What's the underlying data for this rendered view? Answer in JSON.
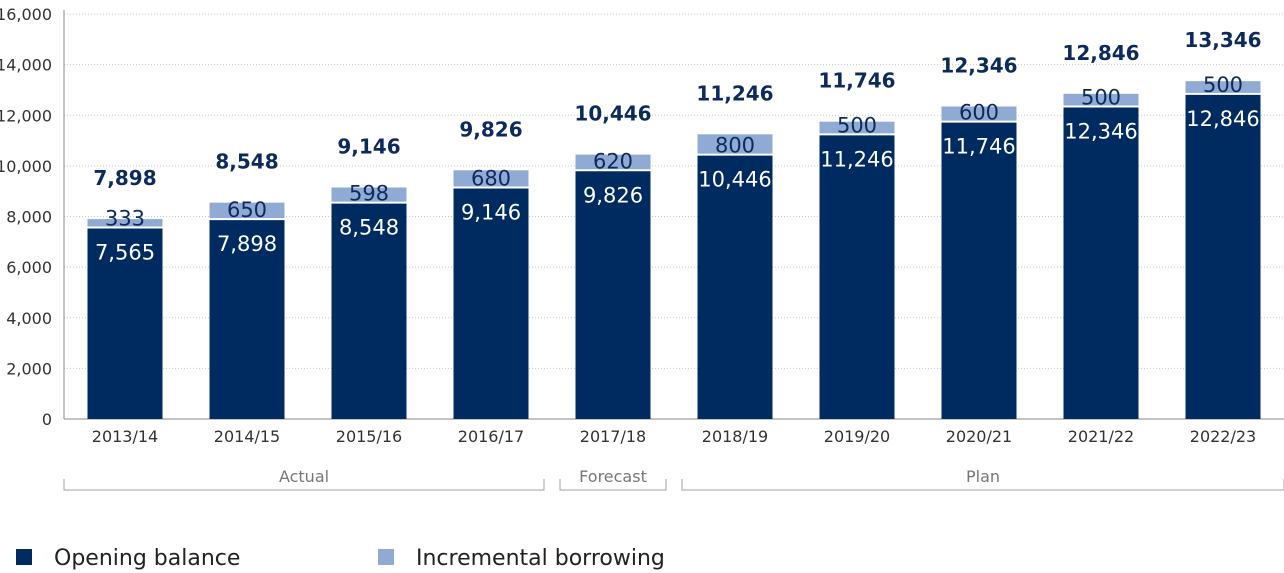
{
  "chart_data": {
    "type": "bar",
    "stacked": true,
    "categories": [
      "2013/14",
      "2014/15",
      "2015/16",
      "2016/17",
      "2017/18",
      "2018/19",
      "2019/20",
      "2020/21",
      "2021/22",
      "2022/23"
    ],
    "series": [
      {
        "name": "Opening balance",
        "color": "#002b60",
        "values": [
          7565,
          7898,
          8548,
          9146,
          9826,
          10446,
          11246,
          11746,
          12346,
          12846
        ],
        "labels": [
          "7,565",
          "7,898",
          "8,548",
          "9,146",
          "9,826",
          "10,446",
          "11,246",
          "11,746",
          "12,346",
          "12,846"
        ]
      },
      {
        "name": "Incremental borrowing",
        "color": "#8faad3",
        "values": [
          333,
          650,
          598,
          680,
          620,
          800,
          500,
          600,
          500,
          500
        ],
        "labels": [
          "333",
          "650",
          "598",
          "680",
          "620",
          "800",
          "500",
          "600",
          "500",
          "500"
        ]
      }
    ],
    "totals": [
      "7,898",
      "8,548",
      "9,146",
      "9,826",
      "10,446",
      "11,246",
      "11,746",
      "12,346",
      "12,846",
      "13,346"
    ],
    "ylim": [
      0,
      16000
    ],
    "yticks": [
      0,
      2000,
      4000,
      6000,
      8000,
      10000,
      12000,
      14000,
      16000
    ],
    "ytick_labels": [
      "0",
      "2,000",
      "4,000",
      "6,000",
      "8,000",
      "10,000",
      "12,000",
      "14,000",
      "16,000"
    ],
    "groups": [
      {
        "label": "Actual",
        "from": 0,
        "to": 3
      },
      {
        "label": "Forecast",
        "from": 4,
        "to": 4
      },
      {
        "label": "Plan",
        "from": 5,
        "to": 9
      }
    ],
    "grid": true,
    "legend_position": "bottom-left"
  }
}
